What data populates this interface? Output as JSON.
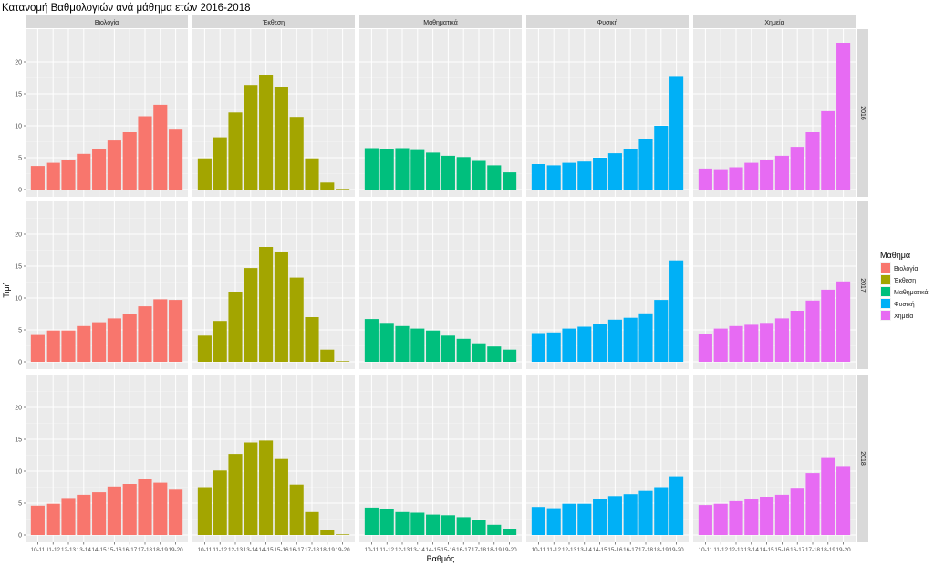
{
  "chart_data": {
    "type": "bar",
    "title": "Κατανομή  Βαθμολογιών ανά μάθημα ετών 2016-2018",
    "xlabel": "Βαθμός",
    "ylabel": "Τιμή",
    "ylim": [
      0,
      24
    ],
    "yticks": [
      0,
      5,
      10,
      15,
      20
    ],
    "grid": true,
    "facet_cols": [
      "Βιολογία",
      "Έκθεση",
      "Μαθηματικά",
      "Φυσική",
      "Χημεία"
    ],
    "facet_rows": [
      "2016",
      "2017",
      "2018"
    ],
    "categories": [
      "10-11",
      "11-12",
      "12-13",
      "13-14",
      "14-15",
      "15-16",
      "16-17",
      "17-18",
      "18-19",
      "19-20"
    ],
    "legend": {
      "title": "Μάθημα",
      "position": "right",
      "entries": [
        {
          "label": "Βιολογία",
          "color": "#F8766D"
        },
        {
          "label": "Έκθεση",
          "color": "#A3A500"
        },
        {
          "label": "Μαθηματικά",
          "color": "#00BF7D"
        },
        {
          "label": "Φυσική",
          "color": "#00B0F6"
        },
        {
          "label": "Χημεία",
          "color": "#E76BF3"
        }
      ]
    },
    "panels": {
      "2016": {
        "Βιολογία": [
          3.7,
          4.2,
          4.7,
          5.6,
          6.4,
          7.7,
          9.0,
          11.5,
          13.3,
          9.4
        ],
        "Έκθεση": [
          4.9,
          8.2,
          12.1,
          16.4,
          18.0,
          16.1,
          11.4,
          4.9,
          1.1,
          0.1
        ],
        "Μαθηματικά": [
          6.5,
          6.3,
          6.5,
          6.2,
          5.8,
          5.3,
          5.1,
          4.5,
          3.8,
          2.7
        ],
        "Φυσική": [
          4.0,
          3.8,
          4.2,
          4.4,
          5.0,
          5.7,
          6.4,
          7.9,
          10.0,
          17.8
        ],
        "Χημεία": [
          3.3,
          3.2,
          3.5,
          4.2,
          4.6,
          5.3,
          6.7,
          9.0,
          12.3,
          23.0
        ]
      },
      "2017": {
        "Βιολογία": [
          4.2,
          4.9,
          4.9,
          5.6,
          6.2,
          6.8,
          7.5,
          8.7,
          9.8,
          9.7
        ],
        "Έκθεση": [
          4.1,
          6.4,
          11.0,
          14.7,
          18.0,
          17.2,
          13.2,
          7.0,
          1.9,
          0.1
        ],
        "Μαθηματικά": [
          6.7,
          6.1,
          5.6,
          5.2,
          4.9,
          4.1,
          3.6,
          2.9,
          2.4,
          1.9
        ],
        "Φυσική": [
          4.5,
          4.6,
          5.2,
          5.5,
          5.9,
          6.6,
          6.9,
          7.6,
          9.7,
          15.9
        ],
        "Χημεία": [
          4.4,
          5.2,
          5.6,
          5.8,
          6.1,
          6.8,
          8.0,
          9.6,
          11.3,
          12.6
        ]
      },
      "2018": {
        "Βιολογία": [
          4.6,
          4.9,
          5.8,
          6.3,
          6.7,
          7.6,
          8.0,
          8.8,
          8.2,
          7.1
        ],
        "Έκθεση": [
          7.5,
          10.1,
          12.7,
          14.5,
          14.8,
          11.9,
          7.9,
          3.6,
          0.8,
          0.1
        ],
        "Μαθηματικά": [
          4.3,
          4.1,
          3.6,
          3.5,
          3.2,
          3.1,
          2.8,
          2.4,
          1.6,
          1.0
        ],
        "Φυσική": [
          4.4,
          4.2,
          4.9,
          4.9,
          5.7,
          6.1,
          6.4,
          6.9,
          7.5,
          9.2
        ],
        "Χημεία": [
          4.7,
          4.9,
          5.3,
          5.6,
          6.0,
          6.3,
          7.4,
          9.7,
          12.2,
          10.8
        ]
      }
    }
  }
}
